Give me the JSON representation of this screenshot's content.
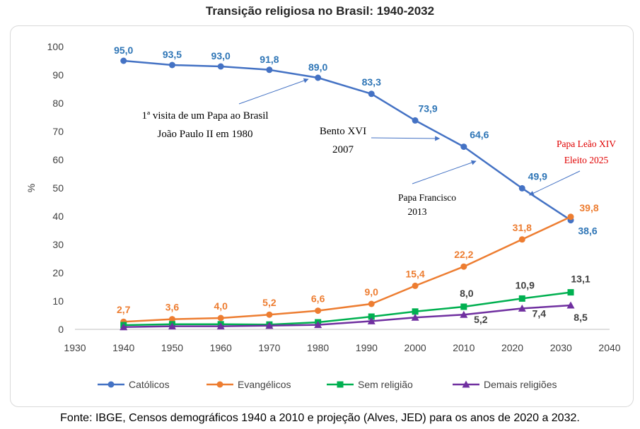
{
  "chart_data": {
    "type": "line",
    "title": "Transição religiosa no Brasil: 1940-2032",
    "xlabel": "",
    "ylabel": "%",
    "xlim": [
      1930,
      2040
    ],
    "ylim": [
      0,
      100
    ],
    "x_ticks": [
      1930,
      1940,
      1950,
      1960,
      1970,
      1980,
      1990,
      2000,
      2010,
      2020,
      2030,
      2040
    ],
    "y_ticks": [
      0,
      10,
      20,
      30,
      40,
      50,
      60,
      70,
      80,
      90,
      100
    ],
    "legend_position": "bottom",
    "series": [
      {
        "name": "Católicos",
        "color": "#4472c4",
        "label_color": "#2e75b6",
        "marker": "circle",
        "x": [
          1940,
          1950,
          1960,
          1970,
          1980,
          1991,
          2000,
          2010,
          2022,
          2032
        ],
        "values": [
          95.0,
          93.5,
          93.0,
          91.8,
          89.0,
          83.3,
          73.9,
          64.6,
          49.9,
          38.6
        ],
        "labels": [
          "95,0",
          "93,5",
          "93,0",
          "91,8",
          "89,0",
          "83,3",
          "73,9",
          "64,6",
          "49,9",
          "38,6"
        ]
      },
      {
        "name": "Evangélicos",
        "color": "#ed7d31",
        "label_color": "#ed7d31",
        "marker": "circle",
        "x": [
          1940,
          1950,
          1960,
          1970,
          1980,
          1991,
          2000,
          2010,
          2022,
          2032
        ],
        "values": [
          2.7,
          3.6,
          4.0,
          5.2,
          6.6,
          9.0,
          15.4,
          22.2,
          31.8,
          39.8
        ],
        "labels": [
          "2,7",
          "3,6",
          "4,0",
          "5,2",
          "6,6",
          "9,0",
          "15,4",
          "22,2",
          "31,8",
          "39,8"
        ]
      },
      {
        "name": "Sem religião",
        "color": "#00b050",
        "label_color": "#404040",
        "marker": "square",
        "x": [
          1940,
          1950,
          1960,
          1970,
          1980,
          1991,
          2000,
          2010,
          2022,
          2032
        ],
        "values": [
          1.5,
          1.8,
          1.8,
          1.7,
          2.5,
          4.5,
          6.3,
          8.0,
          10.9,
          13.1
        ],
        "labels": [
          "",
          "",
          "",
          "",
          "",
          "",
          "",
          "8,0",
          "10,9",
          "13,1"
        ]
      },
      {
        "name": "Demais religiões",
        "color": "#7030a0",
        "label_color": "#404040",
        "marker": "triangle",
        "x": [
          1940,
          1950,
          1960,
          1970,
          1980,
          1991,
          2000,
          2010,
          2022,
          2032
        ],
        "values": [
          0.8,
          1.1,
          1.1,
          1.3,
          1.6,
          2.9,
          4.2,
          5.2,
          7.4,
          8.5
        ],
        "labels": [
          "",
          "",
          "",
          "",
          "",
          "",
          "",
          "5,2",
          "7,4",
          "8,5"
        ]
      }
    ],
    "annotations": [
      {
        "lines": [
          "1ª visita de um Papa ao Brasil",
          "João Paulo II em 1980"
        ],
        "target_x": 1980,
        "target_y": 89.0,
        "style": "normal"
      },
      {
        "lines": [
          "Bento XVI",
          "2007"
        ],
        "target_x": 2007,
        "target_y": 67.5,
        "style": "normal"
      },
      {
        "lines": [
          "Papa Francisco",
          "2013"
        ],
        "target_x": 2013,
        "target_y": 59.5,
        "style": "small"
      },
      {
        "lines": [
          "Papa Leão XIV",
          "Eleito 2025"
        ],
        "target_x": 2025,
        "target_y": 47,
        "style": "red"
      }
    ]
  },
  "source_text": "Fonte: IBGE, Censos demográficos 1940 a 2010 e projeção (Alves, JED) para os anos de 2020 a 2032."
}
